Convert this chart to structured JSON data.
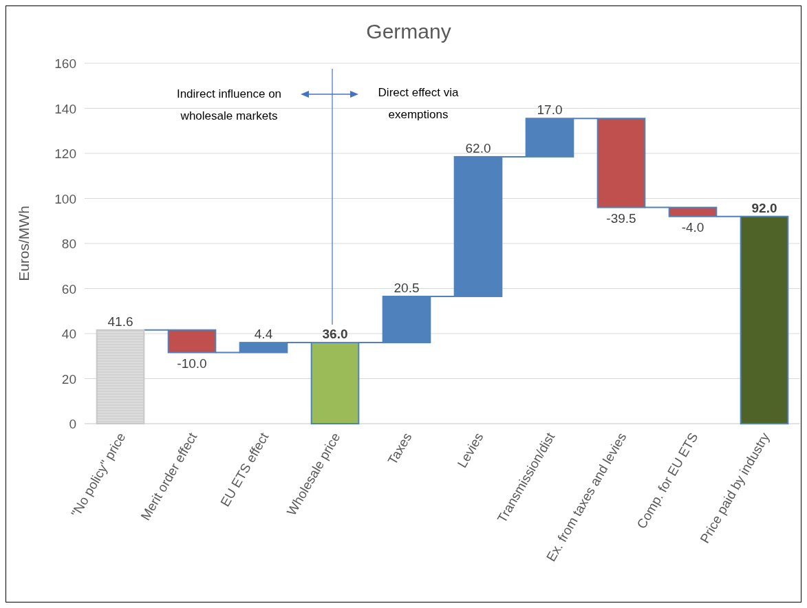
{
  "chart_data": {
    "type": "bar",
    "title": "Germany",
    "ylabel": "Euros/MWh",
    "categories": [
      "\"No policy\" price",
      "Merit order effect",
      "EU ETS effect",
      "Wholesale price",
      "Taxes",
      "Levies",
      "Transmission/dist",
      "Ex. from taxes and levies",
      "Comp. for EU ETS",
      "Price paid by industry"
    ],
    "values": [
      41.6,
      -10.0,
      4.4,
      36.0,
      20.5,
      62.0,
      17.0,
      -39.5,
      -4.0,
      92.0
    ],
    "base": [
      0,
      41.6,
      31.6,
      0,
      36.0,
      56.5,
      118.5,
      135.5,
      96.0,
      0
    ],
    "colors": [
      "#c8c8c8",
      "#c0504d",
      "#4f81bd",
      "#9bbb59",
      "#4f81bd",
      "#4f81bd",
      "#4f81bd",
      "#c0504d",
      "#c0504d",
      "#4f6228"
    ],
    "value_labels": [
      "41.6",
      "-10.0",
      "4.4",
      "36.0",
      "20.5",
      "62.0",
      "17.0",
      "-39.5",
      "-4.0",
      "92.0"
    ],
    "ylim": [
      0,
      160
    ],
    "yticks": [
      0,
      20,
      40,
      60,
      80,
      100,
      120,
      140,
      160
    ],
    "grid": "y",
    "ref_lines": [
      {
        "axis": "x",
        "value": "Wholesale price",
        "color": "#4472c4"
      }
    ],
    "annotations": [
      "Indirect influence on wholesale markets",
      "Direct effect via exemptions"
    ]
  }
}
